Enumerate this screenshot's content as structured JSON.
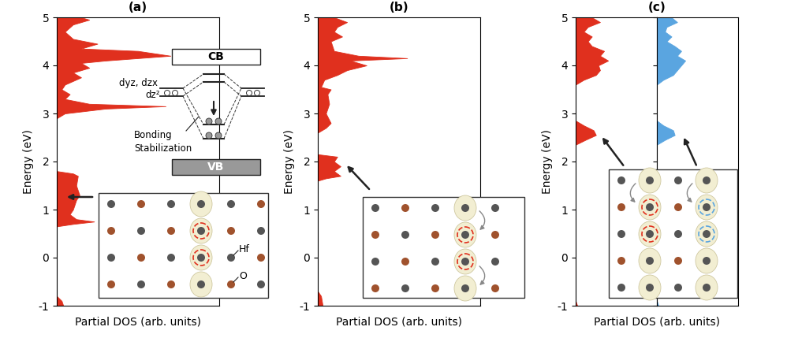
{
  "chart_data": [
    {
      "type": "area",
      "title": "(a)",
      "orientation": "horizontal",
      "x_label": "Partial DOS (arb. units)",
      "y_label": "Energy (eV)",
      "ylim": [
        -1,
        5
      ],
      "yticks": [
        -1,
        0,
        1,
        2,
        3,
        4,
        5
      ],
      "xlim": [
        0,
        1
      ],
      "tick_labels": "y",
      "x": [
        -1.0,
        -0.9,
        -0.8,
        0.65,
        0.7,
        0.75,
        0.8,
        0.9,
        1.0,
        1.2,
        1.3,
        1.5,
        1.7,
        1.75,
        1.8,
        2.9,
        3.0,
        3.1,
        3.15,
        3.2,
        3.3,
        3.4,
        3.5,
        3.6,
        3.75,
        3.85,
        3.95,
        4.05,
        4.1,
        4.2,
        4.3,
        4.35,
        4.45,
        4.55,
        4.7,
        4.85,
        4.95,
        5.0
      ],
      "series": [
        {
          "color": "#e0301e",
          "values": [
            0.04,
            0.03,
            0,
            0,
            0.1,
            0.23,
            0.12,
            0.08,
            0.1,
            0.12,
            0.14,
            0.12,
            0.13,
            0.1,
            0,
            0,
            0.05,
            0.3,
            0.67,
            0.2,
            0.05,
            0.08,
            0.03,
            0.05,
            0.15,
            0.1,
            0.2,
            0.15,
            0.3,
            0.7,
            0.5,
            0.15,
            0.25,
            0.1,
            0.05,
            0.1,
            0.2,
            0.15
          ]
        }
      ],
      "annotations": {
        "conduction_band": "CB",
        "valence_band": "VB",
        "d_orbitals": "dyz, dzx",
        "dz2_orbital": "dz²",
        "bonding": "Bonding",
        "stabilization": "Stabilization",
        "hf_atom": "Hf",
        "o_atom": "O"
      }
    },
    {
      "type": "area",
      "title": "(b)",
      "orientation": "horizontal",
      "x_label": "Partial DOS (arb. units)",
      "y_label": "Energy (eV)",
      "ylim": [
        -1,
        5
      ],
      "yticks": [
        -1,
        0,
        1,
        2,
        3,
        4,
        5
      ],
      "xlim": [
        0,
        1
      ],
      "tick_labels": "y",
      "x": [
        -1.0,
        -0.8,
        -0.7,
        1.6,
        1.65,
        1.7,
        1.8,
        1.9,
        2.0,
        2.1,
        2.15,
        2.6,
        2.7,
        2.8,
        3.0,
        3.2,
        3.4,
        3.5,
        3.55,
        3.7,
        3.8,
        3.9,
        4.0,
        4.1,
        4.15,
        4.2,
        4.3,
        4.5,
        4.6,
        4.7,
        4.8,
        4.9,
        5.0
      ],
      "series": [
        {
          "color": "#e0301e",
          "values": [
            0.03,
            0.02,
            0,
            0,
            0.05,
            0.14,
            0.1,
            0.14,
            0.1,
            0.12,
            0,
            0,
            0.05,
            0.08,
            0.05,
            0.07,
            0.06,
            0.08,
            0.02,
            0.04,
            0.12,
            0.18,
            0.3,
            0.2,
            0.55,
            0.25,
            0.1,
            0.08,
            0.15,
            0.1,
            0.12,
            0.18,
            0.1
          ]
        }
      ]
    },
    {
      "type": "area",
      "title": "(c)",
      "orientation": "horizontal",
      "x_label": "Partial DOS (arb. units)",
      "y_label": "Energy (eV)",
      "ylim": [
        -1,
        5
      ],
      "yticks": [
        -1,
        0,
        1,
        2,
        3,
        4,
        5
      ],
      "xlim": [
        0,
        1
      ],
      "tick_labels": "y",
      "x": [
        -1.0,
        -0.9,
        2.35,
        2.45,
        2.55,
        2.65,
        2.75,
        2.85,
        3.6,
        3.7,
        3.8,
        3.9,
        4.0,
        4.1,
        4.2,
        4.3,
        4.4,
        4.5,
        4.6,
        4.7,
        4.8,
        4.9,
        5.0
      ],
      "series": [
        {
          "color": "#e0301e",
          "values": [
            0.02,
            0,
            0,
            0.12,
            0.25,
            0.22,
            0.1,
            0,
            0,
            0.1,
            0.25,
            0.3,
            0.28,
            0.4,
            0.3,
            0.35,
            0.2,
            0.15,
            0.2,
            0.1,
            0.15,
            0.3,
            0.2
          ]
        },
        {
          "color": "#5aa5e0",
          "values": [
            0.02,
            0,
            0,
            0.1,
            0.22,
            0.2,
            0.08,
            0,
            0,
            0.08,
            0.2,
            0.25,
            0.3,
            0.35,
            0.25,
            0.3,
            0.22,
            0.12,
            0.18,
            0.1,
            0.12,
            0.25,
            0.18
          ]
        }
      ]
    }
  ]
}
